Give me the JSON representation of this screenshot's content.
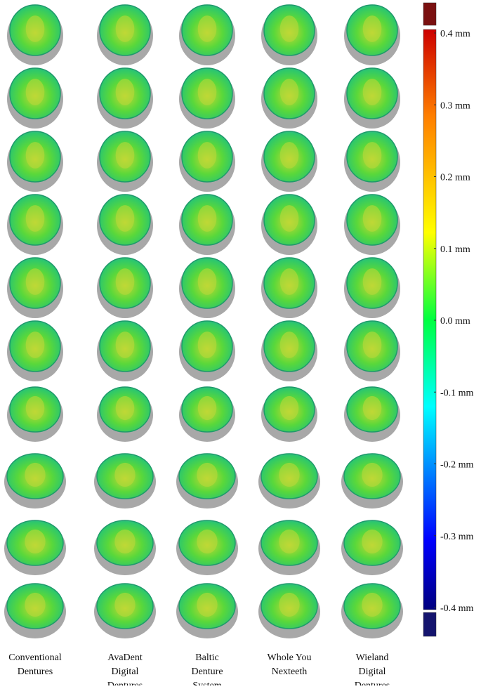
{
  "columns": [
    {
      "lines": [
        "Conventional",
        "Dentures"
      ]
    },
    {
      "lines": [
        "AvaDent",
        "Digital",
        "Dentures"
      ]
    },
    {
      "lines": [
        "Baltic",
        "Denture",
        "System"
      ]
    },
    {
      "lines": [
        "Whole You",
        "Nexteeth"
      ]
    },
    {
      "lines": [
        "Wieland",
        "Digital",
        "Dentures"
      ]
    }
  ],
  "colorbar": {
    "lim": [
      -0.4,
      0.4
    ],
    "ticks": [
      {
        "value": 0.4,
        "label": "0.4 mm"
      },
      {
        "value": 0.3,
        "label": "0.3 mm"
      },
      {
        "value": 0.2,
        "label": "0.2 mm"
      },
      {
        "value": 0.1,
        "label": "0.1 mm"
      },
      {
        "value": 0.0,
        "label": "0.0 mm"
      },
      {
        "value": -0.1,
        "label": "-0.1 mm"
      },
      {
        "value": -0.2,
        "label": "-0.2 mm"
      },
      {
        "value": -0.3,
        "label": "-0.3 mm"
      },
      {
        "value": -0.4,
        "label": "-0.4 mm"
      }
    ]
  }
}
